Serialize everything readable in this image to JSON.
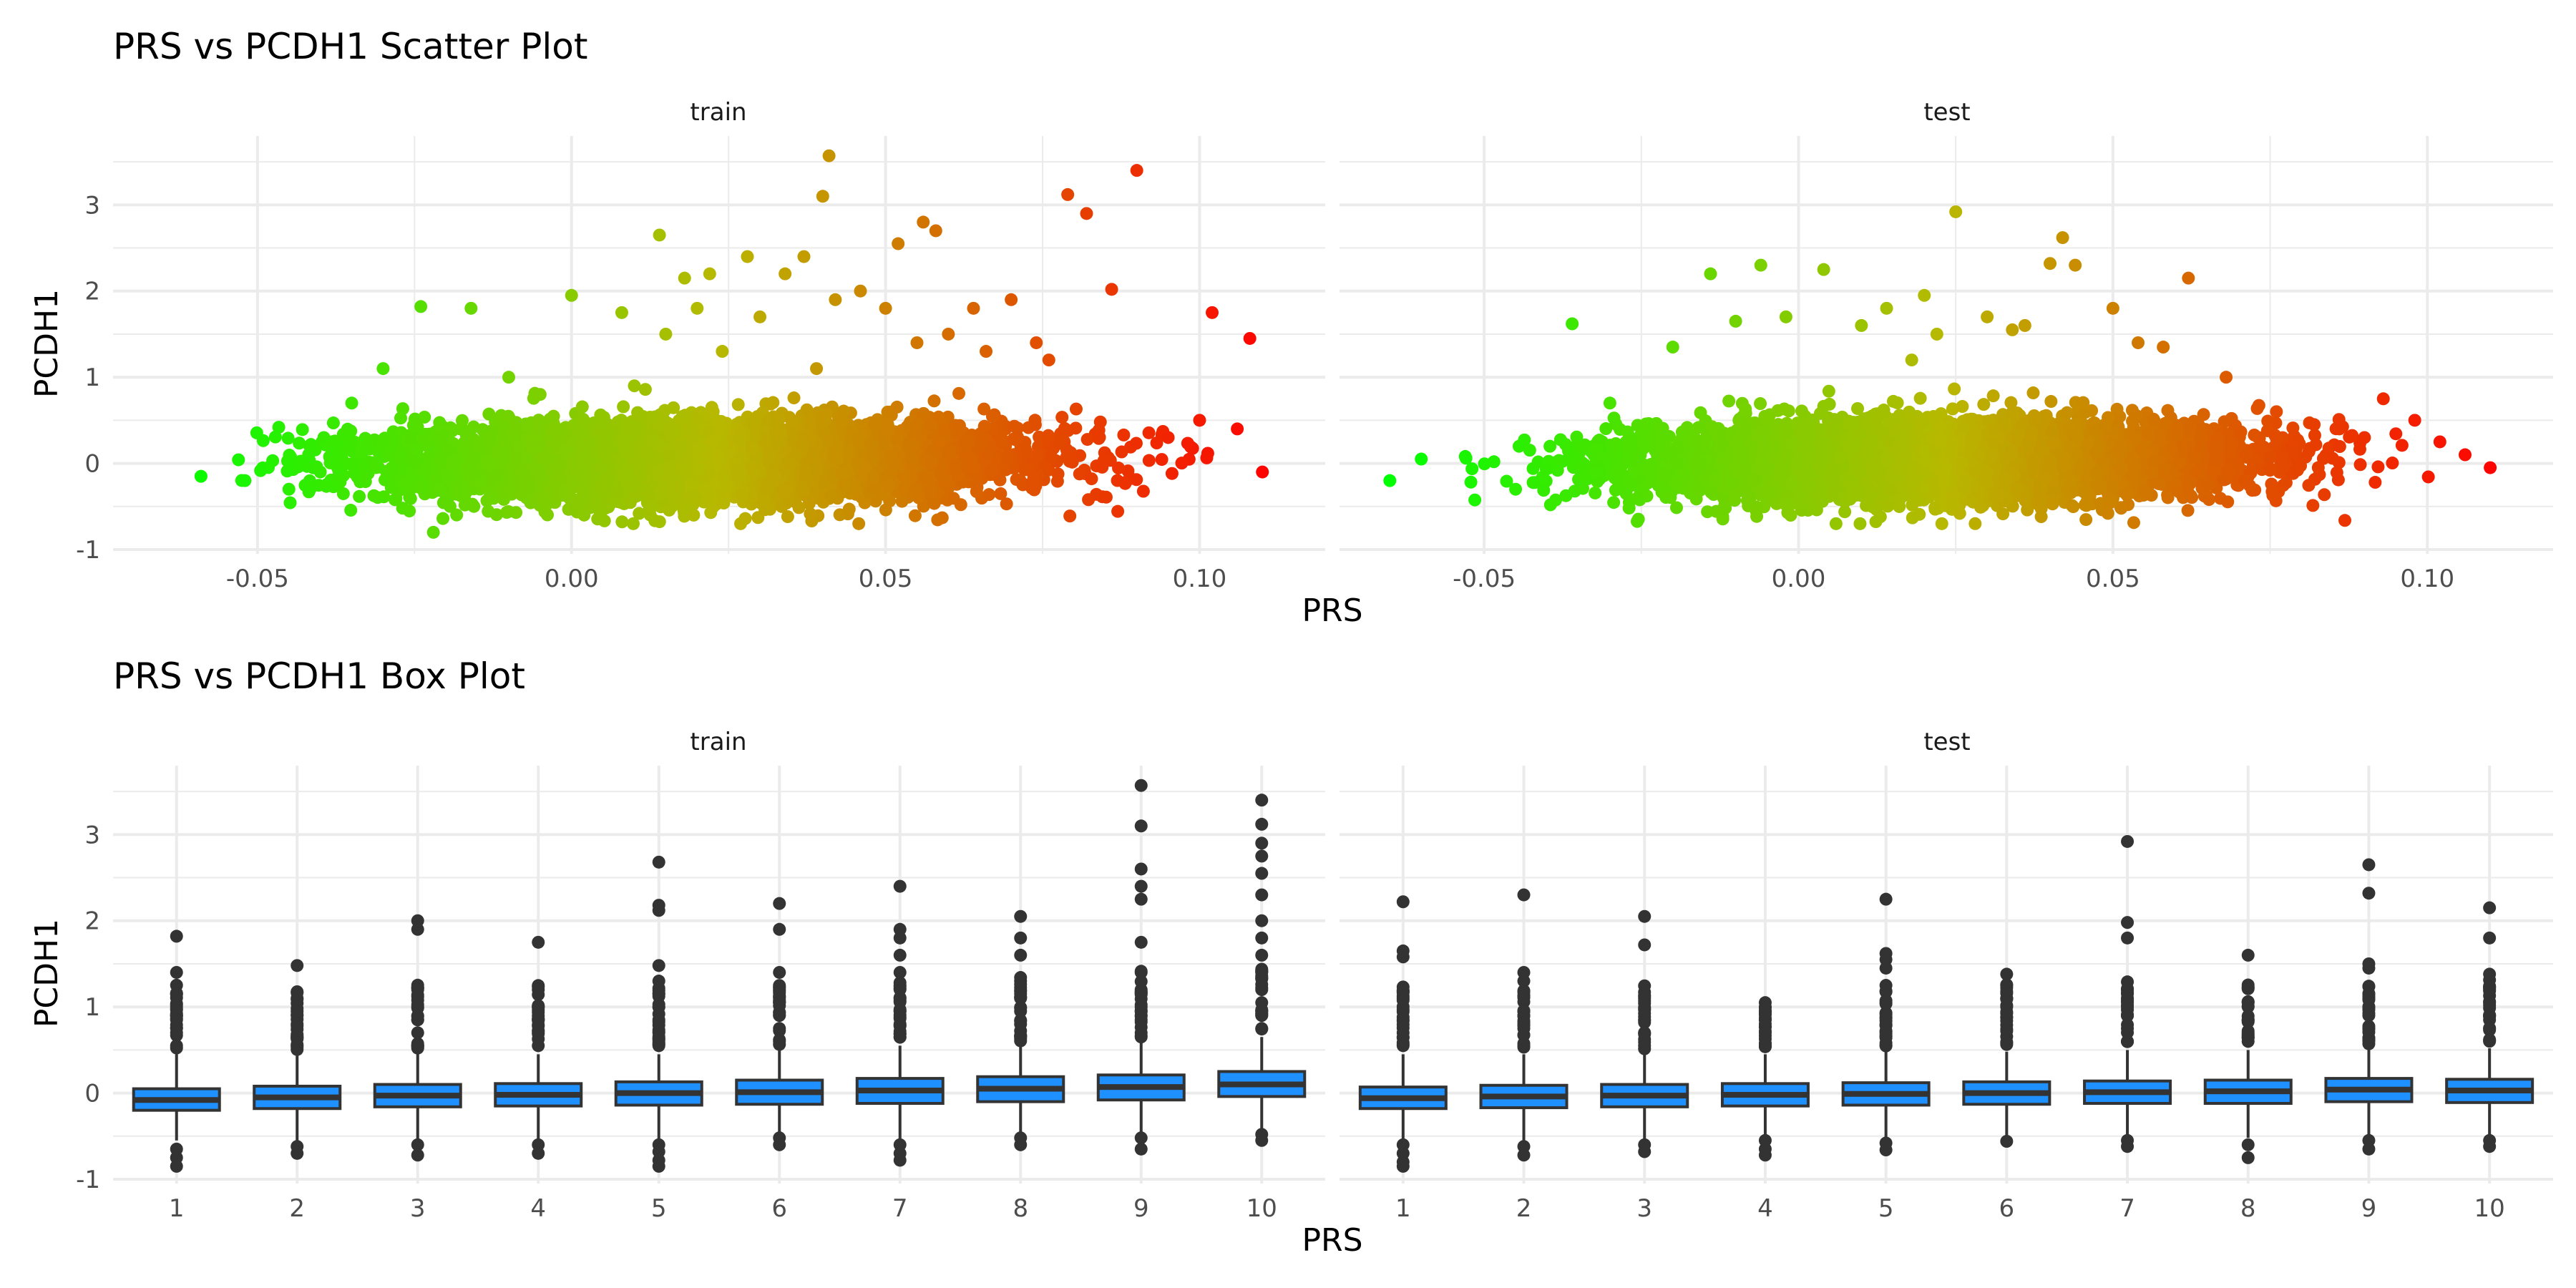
{
  "scatter": {
    "title": "PRS vs PCDH1 Scatter Plot",
    "xlabel": "PRS",
    "ylabel": "PCDH1",
    "x_ticks": [
      "-0.05",
      "0.00",
      "0.05",
      "0.10"
    ],
    "y_ticks": [
      "-1",
      "0",
      "1",
      "2",
      "3"
    ]
  },
  "box": {
    "title": "PRS vs PCDH1 Box Plot",
    "xlabel": "PRS",
    "ylabel": "PCDH1",
    "x_ticks": [
      "1",
      "2",
      "3",
      "4",
      "5",
      "6",
      "7",
      "8",
      "9",
      "10"
    ],
    "y_ticks": [
      "-1",
      "0",
      "1",
      "2",
      "3"
    ]
  },
  "panels": {
    "train": "train",
    "test": "test"
  },
  "colors": {
    "gradient_low": "#00ff00",
    "gradient_mid": "#b8b800",
    "gradient_high": "#ff0000",
    "box_fill": "#1e90ff",
    "box_line": "#333333"
  },
  "chart_data": [
    {
      "type": "scatter",
      "title": "PRS vs PCDH1 Scatter Plot",
      "xlabel": "PRS",
      "ylabel": "PCDH1",
      "facets": [
        "train",
        "test"
      ],
      "xlim": [
        -0.073,
        0.12
      ],
      "ylim": [
        -1.05,
        3.8
      ],
      "color_scale": "PRS gradient green to red",
      "series": [
        {
          "name": "train",
          "x": [
            -0.059,
            -0.052,
            -0.045,
            -0.04,
            -0.035,
            -0.03,
            -0.024,
            -0.022,
            -0.016,
            -0.01,
            -0.005,
            0.0,
            0.002,
            0.008,
            0.01,
            0.014,
            0.015,
            0.018,
            0.02,
            0.022,
            0.024,
            0.028,
            0.03,
            0.034,
            0.037,
            0.039,
            0.04,
            0.041,
            0.042,
            0.046,
            0.05,
            0.052,
            0.055,
            0.056,
            0.058,
            0.06,
            0.064,
            0.066,
            0.07,
            0.074,
            0.076,
            0.079,
            0.082,
            0.086,
            0.09,
            0.095,
            0.1,
            0.102,
            0.106,
            0.108,
            0.11
          ],
          "y": [
            -0.15,
            -0.2,
            -0.3,
            -0.1,
            0.7,
            1.1,
            1.82,
            -0.8,
            1.8,
            1.0,
            0.8,
            1.95,
            -0.6,
            1.75,
            0.9,
            2.65,
            1.5,
            2.15,
            1.8,
            2.2,
            1.3,
            2.4,
            1.7,
            2.2,
            2.4,
            1.1,
            3.1,
            3.57,
            1.9,
            2.0,
            1.8,
            2.55,
            1.4,
            2.8,
            2.7,
            1.5,
            1.8,
            1.3,
            1.9,
            1.4,
            1.2,
            3.12,
            2.9,
            2.02,
            3.4,
            0.3,
            0.5,
            1.75,
            0.4,
            1.45,
            -0.1
          ]
        },
        {
          "name": "test",
          "x": [
            -0.065,
            -0.06,
            -0.053,
            -0.045,
            -0.036,
            -0.03,
            -0.02,
            -0.014,
            -0.01,
            -0.006,
            -0.002,
            0.004,
            0.01,
            0.014,
            0.018,
            0.02,
            0.022,
            0.025,
            0.03,
            0.034,
            0.036,
            0.04,
            0.042,
            0.044,
            0.05,
            0.054,
            0.058,
            0.062,
            0.068,
            0.076,
            0.082,
            0.086,
            0.09,
            0.093,
            0.098,
            0.102,
            0.106,
            0.11
          ],
          "y": [
            -0.2,
            0.05,
            0.08,
            -0.3,
            1.62,
            0.7,
            1.35,
            2.2,
            1.65,
            2.3,
            1.7,
            2.25,
            1.6,
            1.8,
            1.2,
            1.95,
            1.5,
            2.92,
            1.7,
            1.55,
            1.6,
            2.32,
            2.62,
            2.3,
            1.8,
            1.4,
            1.35,
            2.15,
            1.0,
            0.6,
            0.45,
            0.4,
            0.3,
            0.75,
            0.5,
            0.25,
            0.1,
            -0.05
          ]
        }
      ]
    },
    {
      "type": "box",
      "title": "PRS vs PCDH1 Box Plot",
      "xlabel": "PRS",
      "ylabel": "PCDH1",
      "facets": [
        "train",
        "test"
      ],
      "categories": [
        "1",
        "2",
        "3",
        "4",
        "5",
        "6",
        "7",
        "8",
        "9",
        "10"
      ],
      "ylim": [
        -1.05,
        3.8
      ],
      "series": [
        {
          "name": "train",
          "boxes": [
            {
              "q1": -0.2,
              "median": -0.08,
              "q3": 0.05,
              "lower": -0.55,
              "upper": 0.45,
              "outliers": [
                -0.65,
                -0.75,
                -0.85,
                0.55,
                0.7,
                0.85,
                1.0,
                1.15,
                1.4,
                1.82
              ]
            },
            {
              "q1": -0.18,
              "median": -0.05,
              "q3": 0.08,
              "lower": -0.55,
              "upper": 0.45,
              "outliers": [
                -0.62,
                -0.7,
                0.55,
                0.65,
                0.8,
                0.95,
                1.1,
                1.48
              ]
            },
            {
              "q1": -0.16,
              "median": -0.03,
              "q3": 0.1,
              "lower": -0.55,
              "upper": 0.45,
              "outliers": [
                -0.6,
                -0.72,
                0.55,
                0.7,
                0.85,
                1.0,
                1.2,
                1.9,
                2.0
              ]
            },
            {
              "q1": -0.15,
              "median": -0.02,
              "q3": 0.11,
              "lower": -0.55,
              "upper": 0.45,
              "outliers": [
                -0.6,
                -0.7,
                0.55,
                0.7,
                0.85,
                1.0,
                1.2,
                1.75
              ]
            },
            {
              "q1": -0.14,
              "median": 0.0,
              "q3": 0.13,
              "lower": -0.55,
              "upper": 0.45,
              "outliers": [
                -0.6,
                -0.68,
                -0.78,
                -0.85,
                0.55,
                0.7,
                0.85,
                1.0,
                1.15,
                1.3,
                1.48,
                2.12,
                2.18,
                2.68
              ]
            },
            {
              "q1": -0.13,
              "median": 0.01,
              "q3": 0.15,
              "lower": -0.5,
              "upper": 0.5,
              "outliers": [
                -0.52,
                -0.6,
                0.6,
                0.75,
                0.9,
                1.05,
                1.2,
                1.4,
                1.9,
                2.2
              ]
            },
            {
              "q1": -0.12,
              "median": 0.03,
              "q3": 0.17,
              "lower": -0.55,
              "upper": 0.55,
              "outliers": [
                -0.6,
                -0.7,
                -0.78,
                0.65,
                0.8,
                0.95,
                1.1,
                1.25,
                1.4,
                1.6,
                1.8,
                1.9,
                2.4
              ]
            },
            {
              "q1": -0.1,
              "median": 0.05,
              "q3": 0.19,
              "lower": -0.5,
              "upper": 0.55,
              "outliers": [
                -0.52,
                -0.6,
                0.65,
                0.8,
                0.95,
                1.1,
                1.3,
                1.6,
                1.8,
                2.05
              ]
            },
            {
              "q1": -0.08,
              "median": 0.07,
              "q3": 0.21,
              "lower": -0.5,
              "upper": 0.6,
              "outliers": [
                -0.52,
                -0.65,
                0.7,
                0.85,
                1.0,
                1.15,
                1.4,
                1.75,
                2.25,
                2.4,
                2.6,
                3.1,
                3.57
              ]
            },
            {
              "q1": -0.04,
              "median": 0.1,
              "q3": 0.25,
              "lower": -0.45,
              "upper": 0.65,
              "outliers": [
                -0.48,
                -0.55,
                0.75,
                0.9,
                1.05,
                1.2,
                1.4,
                1.6,
                1.8,
                2.0,
                2.3,
                2.55,
                2.75,
                2.9,
                3.12,
                3.4
              ]
            }
          ]
        },
        {
          "name": "test",
          "boxes": [
            {
              "q1": -0.18,
              "median": -0.06,
              "q3": 0.07,
              "lower": -0.55,
              "upper": 0.45,
              "outliers": [
                -0.6,
                -0.7,
                -0.8,
                -0.85,
                0.55,
                0.7,
                0.85,
                1.1,
                1.58,
                1.65,
                2.22
              ]
            },
            {
              "q1": -0.17,
              "median": -0.04,
              "q3": 0.09,
              "lower": -0.55,
              "upper": 0.45,
              "outliers": [
                -0.62,
                -0.72,
                0.55,
                0.75,
                0.9,
                0.95,
                1.3,
                1.4,
                2.3
              ]
            },
            {
              "q1": -0.16,
              "median": -0.03,
              "q3": 0.1,
              "lower": -0.55,
              "upper": 0.45,
              "outliers": [
                -0.6,
                -0.68,
                0.55,
                0.7,
                0.85,
                1.1,
                1.72,
                2.05
              ]
            },
            {
              "q1": -0.15,
              "median": -0.02,
              "q3": 0.11,
              "lower": -0.5,
              "upper": 0.45,
              "outliers": [
                -0.55,
                -0.65,
                -0.72,
                0.55,
                0.7,
                0.85,
                1.0,
                1.05
              ]
            },
            {
              "q1": -0.14,
              "median": -0.01,
              "q3": 0.12,
              "lower": -0.55,
              "upper": 0.48,
              "outliers": [
                -0.58,
                -0.66,
                0.58,
                0.72,
                0.88,
                1.05,
                1.25,
                1.45,
                1.55,
                1.62,
                2.25
              ]
            },
            {
              "q1": -0.13,
              "median": 0.0,
              "q3": 0.13,
              "lower": -0.5,
              "upper": 0.48,
              "outliers": [
                -0.56,
                0.58,
                0.72,
                0.88,
                1.0,
                1.1,
                1.38
              ]
            },
            {
              "q1": -0.12,
              "median": 0.01,
              "q3": 0.14,
              "lower": -0.52,
              "upper": 0.5,
              "outliers": [
                -0.55,
                -0.62,
                0.6,
                0.75,
                0.9,
                1.2,
                1.8,
                1.98,
                2.92
              ]
            },
            {
              "q1": -0.12,
              "median": 0.02,
              "q3": 0.15,
              "lower": -0.52,
              "upper": 0.5,
              "outliers": [
                -0.6,
                -0.75,
                0.6,
                0.72,
                0.85,
                1.05,
                1.6
              ]
            },
            {
              "q1": -0.1,
              "median": 0.04,
              "q3": 0.17,
              "lower": -0.52,
              "upper": 0.52,
              "outliers": [
                -0.55,
                -0.65,
                0.62,
                0.75,
                0.9,
                1.1,
                1.45,
                1.5,
                2.32,
                2.65
              ]
            },
            {
              "q1": -0.11,
              "median": 0.03,
              "q3": 0.16,
              "lower": -0.52,
              "upper": 0.52,
              "outliers": [
                -0.55,
                -0.62,
                0.62,
                0.75,
                0.9,
                1.05,
                1.2,
                1.38,
                1.8,
                2.15
              ]
            }
          ]
        }
      ]
    }
  ]
}
